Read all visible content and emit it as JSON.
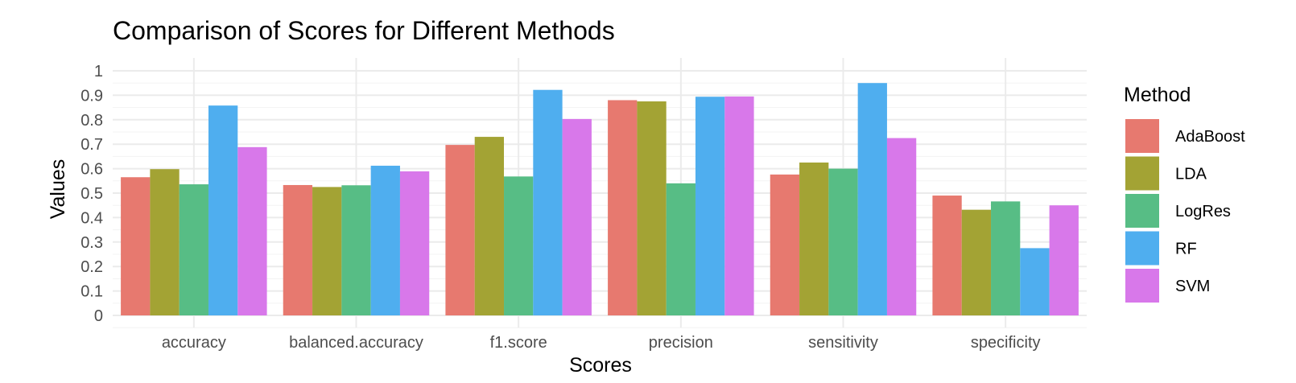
{
  "chart_data": {
    "type": "bar",
    "title": "Comparison of Scores for Different Methods",
    "xlabel": "Scores",
    "ylabel": "Values",
    "ylim": [
      0,
      1
    ],
    "yticks": [
      "0",
      "0.1",
      "0.2",
      "0.3",
      "0.4",
      "0.5",
      "0.6",
      "0.7",
      "0.8",
      "0.9",
      "1"
    ],
    "categories": [
      "accuracy",
      "balanced.accuracy",
      "f1.score",
      "precision",
      "sensitivity",
      "specificity"
    ],
    "grid": true,
    "legend": {
      "title": "Method",
      "placement": "right"
    },
    "series": [
      {
        "name": "AdaBoost",
        "color": "#E7796F",
        "values": [
          0.565,
          0.533,
          0.697,
          0.88,
          0.576,
          0.49
        ]
      },
      {
        "name": "LDA",
        "color": "#A3A334",
        "values": [
          0.598,
          0.525,
          0.73,
          0.875,
          0.625,
          0.432
        ]
      },
      {
        "name": "LogRes",
        "color": "#57BD85",
        "values": [
          0.536,
          0.532,
          0.568,
          0.54,
          0.6,
          0.466
        ]
      },
      {
        "name": "RF",
        "color": "#4FAEEF",
        "values": [
          0.858,
          0.612,
          0.922,
          0.894,
          0.95,
          0.275
        ]
      },
      {
        "name": "SVM",
        "color": "#D878EA",
        "values": [
          0.688,
          0.589,
          0.803,
          0.895,
          0.725,
          0.45
        ]
      }
    ]
  }
}
